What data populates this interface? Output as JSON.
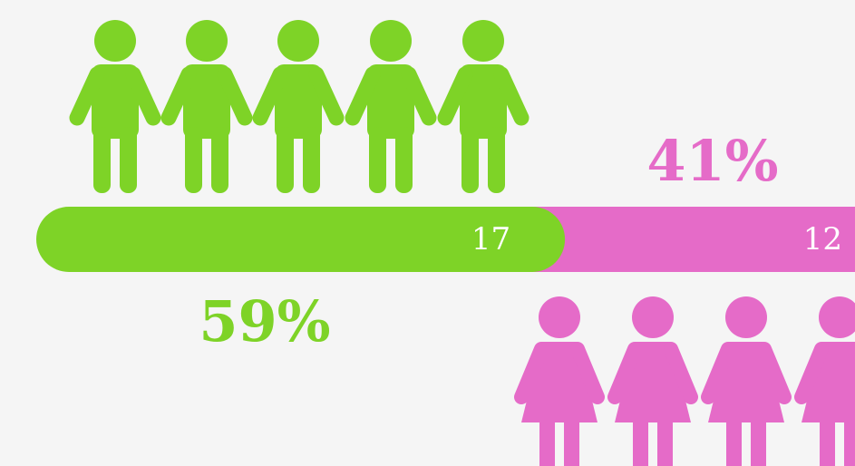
{
  "chart_data": {
    "type": "stacked-bar",
    "series": [
      {
        "color": "#7ed327",
        "values": [
          17
        ],
        "share_label": "59%"
      },
      {
        "color": "#e56bc8",
        "values": [
          12
        ],
        "share_label": "41%"
      }
    ]
  }
}
